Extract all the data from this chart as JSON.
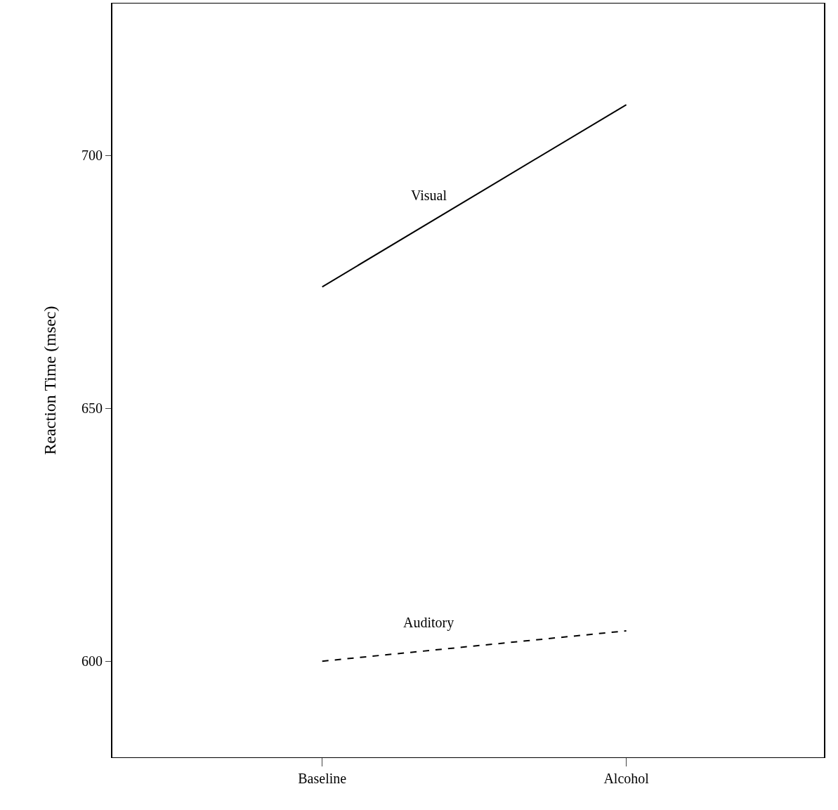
{
  "chart_data": {
    "type": "line",
    "ylabel": "Reaction Time (msec)",
    "categories": [
      "Baseline",
      "Alcohol"
    ],
    "series": [
      {
        "name": "Visual",
        "color": "#000000",
        "values": [
          674,
          710
        ],
        "line_style": "solid"
      },
      {
        "name": "Auditory",
        "color": "#000000",
        "values": [
          600,
          606
        ],
        "line_style": "dashed"
      }
    ],
    "ylim": [
      581,
      730
    ],
    "yticks": [
      600,
      650,
      700
    ],
    "grid": false,
    "legend": false,
    "marker": "none"
  }
}
